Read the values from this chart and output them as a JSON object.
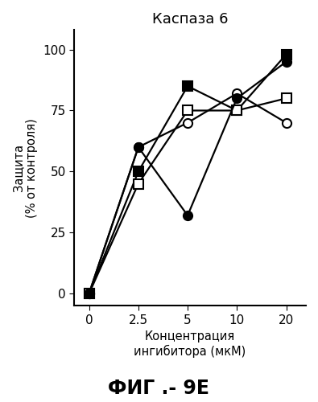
{
  "title": "Каспаза 6",
  "xlabel_line1": "Концентрация",
  "xlabel_line2": "ингибитора (мкМ)",
  "ylabel_top": "Защита",
  "ylabel_bottom": "(% от контроля)",
  "x_positions": [
    0,
    1,
    2,
    3,
    4
  ],
  "x_labels": [
    "0",
    "2.5",
    "5",
    "10",
    "20"
  ],
  "series": [
    {
      "label": "filled_square",
      "y": [
        0,
        50,
        85,
        75,
        98
      ],
      "marker": "s",
      "filled": true
    },
    {
      "label": "open_square",
      "y": [
        0,
        45,
        75,
        75,
        80
      ],
      "marker": "s",
      "filled": false
    },
    {
      "label": "open_circle",
      "y": [
        0,
        60,
        70,
        82,
        70
      ],
      "marker": "o",
      "filled": false
    },
    {
      "label": "filled_circle",
      "y": [
        0,
        60,
        32,
        80,
        95
      ],
      "marker": "o",
      "filled": true
    }
  ],
  "xlim": [
    -0.3,
    4.4
  ],
  "ylim": [
    -5,
    108
  ],
  "yticks": [
    0,
    25,
    50,
    75,
    100
  ],
  "fig_label": "ФИГ .- 9Е",
  "bg_color": "#ffffff",
  "line_color": "#000000",
  "marker_size": 8,
  "linewidth": 1.6
}
